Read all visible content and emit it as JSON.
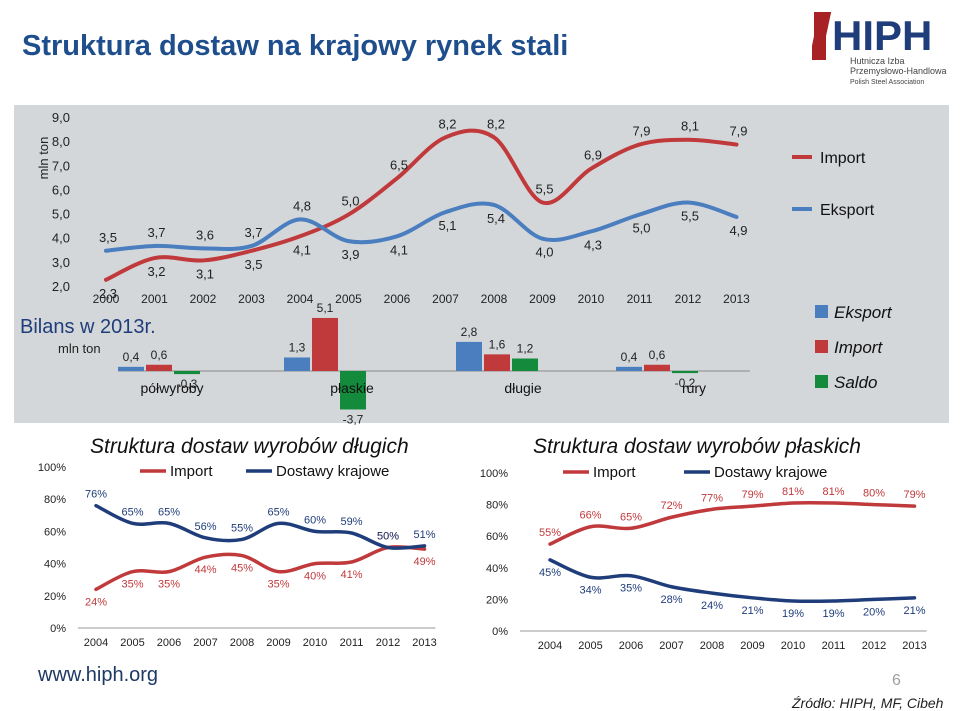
{
  "title": "Struktura dostaw na krajowy rynek stali",
  "logo": {
    "big": "HIPH",
    "line1": "Hutnicza Izba",
    "line2": "Przemysłowo-Handlowa",
    "line3": "Polish Steel Association"
  },
  "footer": {
    "url": "www.hiph.org",
    "page": "6",
    "source": "Źródło: HIPH, MF, Cibeh"
  },
  "colors": {
    "import": "#c0393b",
    "export": "#4a7ebf",
    "saldo": "#138a3c",
    "title": "#1f4e8c"
  },
  "chart_data": [
    {
      "type": "line",
      "ylabel": "mln ton",
      "ylim": [
        2.0,
        9.0
      ],
      "yticks": [
        "2,0",
        "3,0",
        "4,0",
        "5,0",
        "6,0",
        "7,0",
        "8,0",
        "9,0"
      ],
      "x": [
        "2000",
        "2001",
        "2002",
        "2003",
        "2004",
        "2005",
        "2006",
        "2007",
        "2008",
        "2009",
        "2010",
        "2011",
        "2012",
        "2013"
      ],
      "series": [
        {
          "name": "Import",
          "color": "#c0393b",
          "values": [
            2.3,
            3.2,
            3.1,
            3.5,
            4.1,
            5.0,
            6.5,
            8.2,
            8.2,
            5.5,
            6.9,
            7.9,
            8.1,
            7.9
          ],
          "labels": [
            "2,3",
            "3,2",
            "3,1",
            "3,5",
            "4,1",
            "5,0",
            "6,5",
            "8,2",
            "8,2",
            "5,5",
            "6,9",
            "7,9",
            "8,1",
            "7,9"
          ]
        },
        {
          "name": "Eksport",
          "color": "#4a7ebf",
          "values": [
            3.5,
            3.7,
            3.6,
            3.7,
            4.8,
            3.9,
            4.1,
            5.1,
            5.4,
            4.0,
            4.3,
            5.0,
            5.5,
            4.9
          ],
          "labels": [
            "3,5",
            "3,7",
            "3,6",
            "3,7",
            "4,8",
            "3,9",
            "4,1",
            "5,1",
            "5,4",
            "4,0",
            "4,3",
            "5,0",
            "5,5",
            "4,9"
          ]
        }
      ]
    },
    {
      "type": "bar",
      "title": "Bilans w 2013r.",
      "ylabel": "mln ton",
      "categories": [
        "półwyroby",
        "płaskie",
        "długie",
        "rury"
      ],
      "series": [
        {
          "name": "Eksport",
          "color": "#4a7ebf",
          "values": [
            0.4,
            1.3,
            2.8,
            0.4
          ],
          "labels": [
            "0,4",
            "1,3",
            "2,8",
            "0,4"
          ]
        },
        {
          "name": "Import",
          "color": "#c0393b",
          "values": [
            0.6,
            5.1,
            1.6,
            0.6
          ],
          "labels": [
            "0,6",
            "5,1",
            "1,6",
            "0,6"
          ]
        },
        {
          "name": "Saldo",
          "color": "#138a3c",
          "values": [
            -0.3,
            -3.7,
            1.2,
            -0.2
          ],
          "labels": [
            "-0,3",
            "-3,7",
            "1,2",
            "-0,2"
          ]
        }
      ]
    },
    {
      "type": "line",
      "title": "Struktura dostaw wyrobów długich",
      "ylim": [
        0,
        100
      ],
      "yticks": [
        "0%",
        "20%",
        "40%",
        "60%",
        "80%",
        "100%"
      ],
      "x": [
        "2004",
        "2005",
        "2006",
        "2007",
        "2008",
        "2009",
        "2010",
        "2011",
        "2012",
        "2013"
      ],
      "series": [
        {
          "name": "Import",
          "color": "#c0393b",
          "values": [
            24,
            35,
            35,
            44,
            45,
            35,
            40,
            41,
            50,
            49
          ],
          "labels": [
            "24%",
            "35%",
            "35%",
            "44%",
            "45%",
            "35%",
            "40%",
            "41%",
            "50%",
            "49%"
          ]
        },
        {
          "name": "Dostawy krajowe",
          "color": "#1f3d7a",
          "values": [
            76,
            65,
            65,
            56,
            55,
            65,
            60,
            59,
            50,
            51
          ],
          "labels": [
            "76%",
            "65%",
            "65%",
            "56%",
            "55%",
            "65%",
            "60%",
            "59%",
            "50%",
            "51%"
          ]
        }
      ]
    },
    {
      "type": "line",
      "title": "Struktura dostaw wyrobów płaskich",
      "ylim": [
        0,
        100
      ],
      "yticks": [
        "0%",
        "20%",
        "40%",
        "60%",
        "80%",
        "100%"
      ],
      "x": [
        "2004",
        "2005",
        "2006",
        "2007",
        "2008",
        "2009",
        "2010",
        "2011",
        "2012",
        "2013"
      ],
      "series": [
        {
          "name": "Import",
          "color": "#c0393b",
          "values": [
            55,
            66,
            65,
            72,
            77,
            79,
            81,
            81,
            80,
            79
          ],
          "labels": [
            "55%",
            "66%",
            "65%",
            "72%",
            "77%",
            "79%",
            "81%",
            "81%",
            "80%",
            "79%"
          ]
        },
        {
          "name": "Dostawy krajowe",
          "color": "#1f3d7a",
          "values": [
            45,
            34,
            35,
            28,
            24,
            21,
            19,
            19,
            20,
            21
          ],
          "labels": [
            "45%",
            "34%",
            "35%",
            "28%",
            "24%",
            "21%",
            "19%",
            "19%",
            "20%",
            "21%"
          ]
        }
      ]
    }
  ]
}
